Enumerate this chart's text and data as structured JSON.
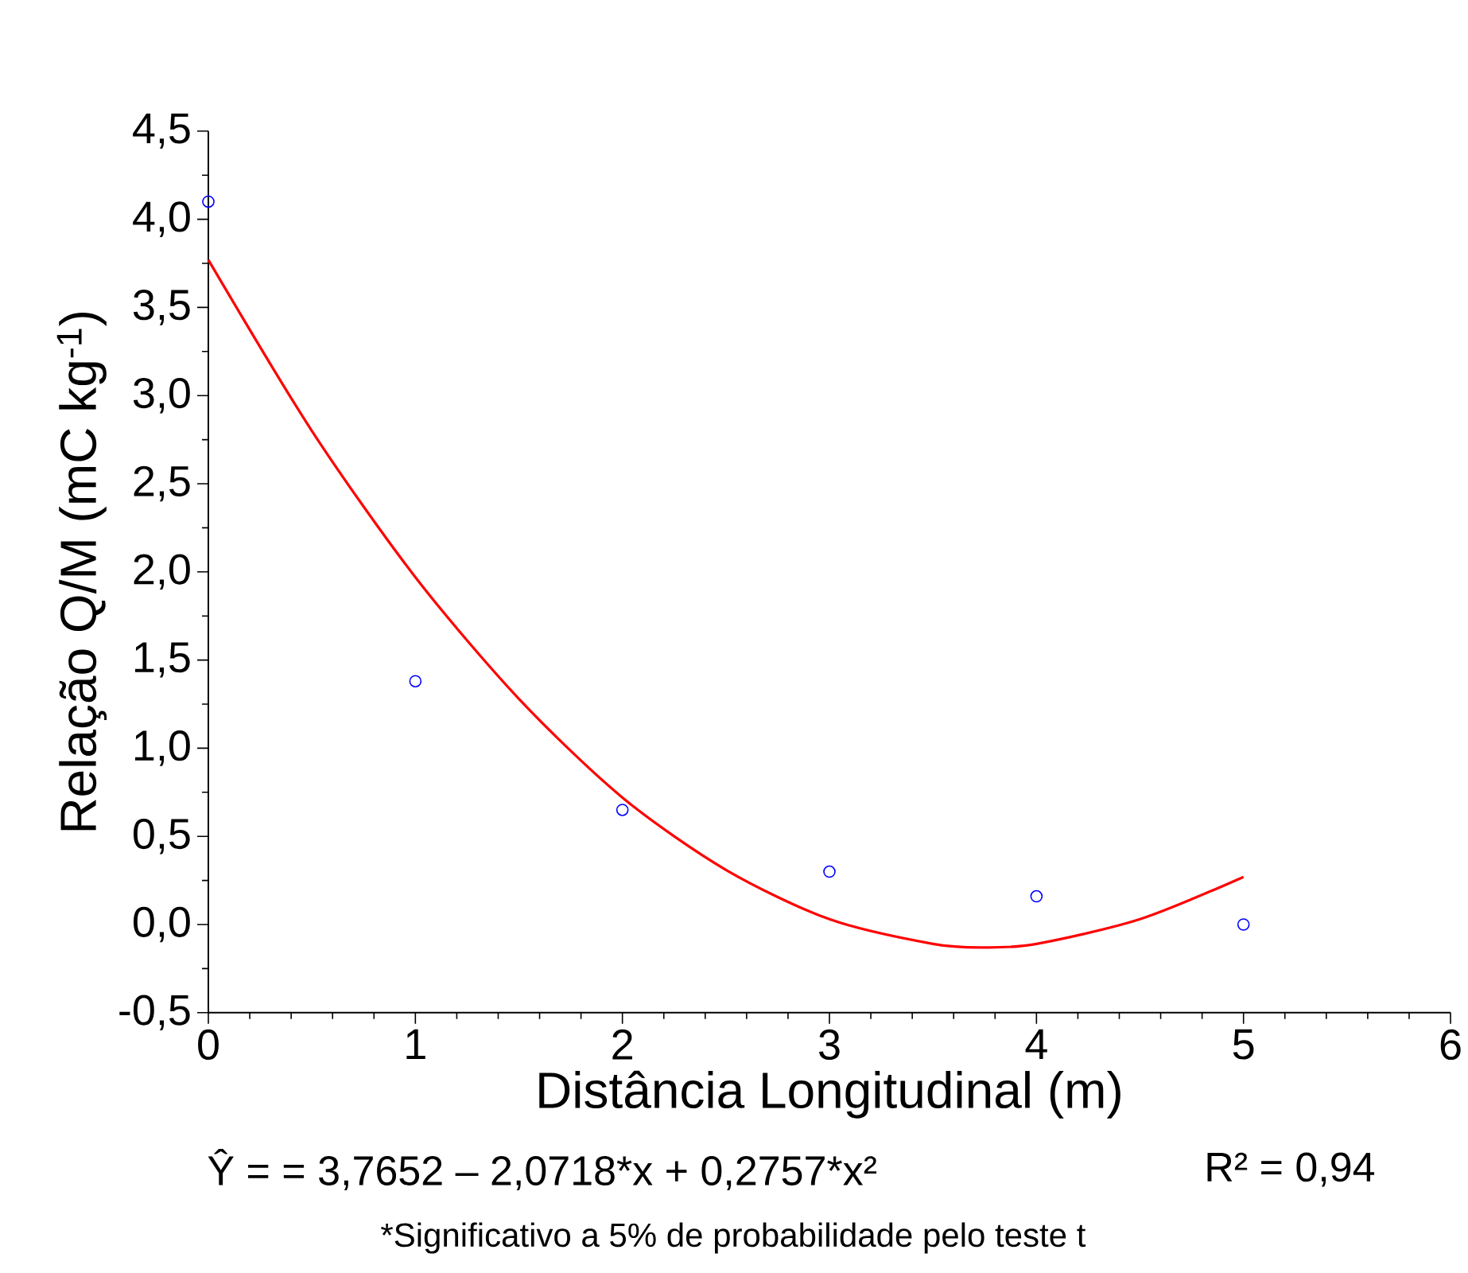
{
  "chart_data": {
    "type": "scatter",
    "xlabel": "Distância Longitudinal (m)",
    "ylabel": "Relação Q/M (mC kg$^{-1}$)",
    "xlim": [
      0,
      6
    ],
    "xticks": [
      0,
      1,
      2,
      3,
      4,
      5,
      6
    ],
    "ylim": [
      -0.5,
      4.5
    ],
    "yticks": [
      {
        "value": -0.5,
        "label": "-0,5"
      },
      {
        "value": 0,
        "label": "0,0"
      },
      {
        "value": 0.5,
        "label": "0,5"
      },
      {
        "value": 1,
        "label": "1,0"
      },
      {
        "value": 1.5,
        "label": "1,5"
      },
      {
        "value": 2,
        "label": "2,0"
      },
      {
        "value": 2.5,
        "label": "2,5"
      },
      {
        "value": 3,
        "label": "3,0"
      },
      {
        "value": 3.5,
        "label": "3,5"
      },
      {
        "value": 4,
        "label": "4,0"
      },
      {
        "value": 4.5,
        "label": "4,5"
      }
    ],
    "series": [
      {
        "color": "#0000ff",
        "marker": "circle",
        "x": [
          0,
          1,
          2,
          3,
          4,
          5
        ],
        "values": [
          4.1,
          1.38,
          0.65,
          0.3,
          0.16,
          0.0
        ]
      },
      {
        "type": "line",
        "color": "#ff0000",
        "marker": "none",
        "line_style": "solid",
        "x": [
          0,
          0.5,
          1,
          1.5,
          2,
          2.5,
          3,
          3.5,
          3.75,
          4,
          4.5,
          5
        ],
        "values": [
          3.77,
          2.8,
          1.97,
          1.28,
          0.72,
          0.31,
          0.03,
          -0.11,
          -0.13,
          -0.11,
          0.03,
          0.27
        ]
      }
    ],
    "annotations": [
      "Ŷ = = 3,7652 – 2,0718*x + 0,2757*x²",
      "R² = 0,94",
      "*Significativo a 5% de probabilidade pelo teste t"
    ]
  }
}
